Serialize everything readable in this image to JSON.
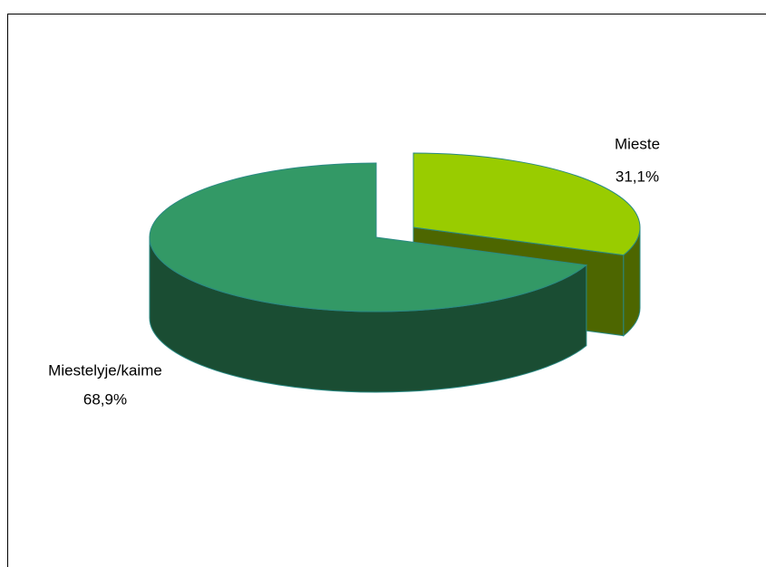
{
  "chart_data": {
    "type": "pie",
    "categories": [
      "Mieste",
      "Miestelyje/kaime"
    ],
    "values": [
      31.1,
      68.9
    ],
    "value_labels": [
      "31,1%",
      "68,9%"
    ],
    "colors": [
      "#99cc00",
      "#339966"
    ]
  }
}
